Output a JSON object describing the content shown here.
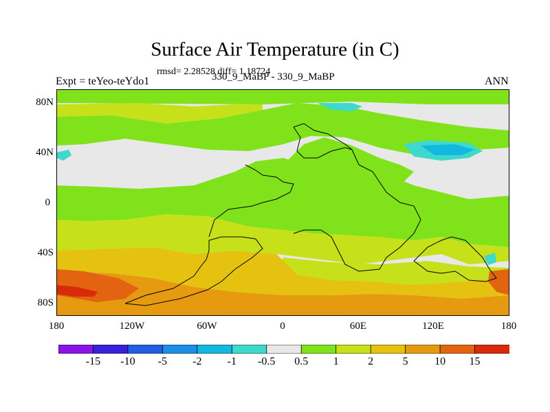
{
  "chart_data": {
    "type": "heatmap",
    "title": "Surface Air Temperature (in C)",
    "stats": "rmsd= 2.28528 diff= 1.18724",
    "left_label": "Expt = teYeo-teYdo1",
    "center_label": "330_9_MaBP - 330_9_MaBP",
    "right_label": "ANN",
    "x_ticks": [
      "180",
      "120W",
      "60W",
      "0",
      "60E",
      "120E",
      "180"
    ],
    "x_tick_lon": [
      -180,
      -120,
      -60,
      0,
      60,
      120,
      180
    ],
    "y_ticks": [
      "80N",
      "40N",
      "0",
      "40S",
      "80S"
    ],
    "y_tick_lat": [
      80,
      40,
      0,
      -40,
      -80
    ],
    "xlim": [
      -180,
      180
    ],
    "ylim": [
      -90,
      90
    ],
    "colorbar": {
      "levels": [
        "-15",
        "-10",
        "-5",
        "-2",
        "-1",
        "-0.5",
        "0.5",
        "1",
        "2",
        "5",
        "10",
        "15"
      ],
      "colors": [
        "#8a14e6",
        "#3a20d8",
        "#1f5fe0",
        "#1a8fe3",
        "#12b8e0",
        "#3fd9cc",
        "#e8e8e8",
        "#7fe21b",
        "#c6e01a",
        "#e6c210",
        "#e69a10",
        "#e26410",
        "#d92a0a"
      ]
    },
    "colors": {
      "neutral": "#e8e8e8",
      "green": "#7fe21b",
      "yellow_green": "#c6e01a",
      "yellow": "#e6c210",
      "orange": "#e69a10",
      "dark_orange": "#e26410",
      "red": "#d92a0a",
      "cyan": "#3fd9cc",
      "blue": "#12b8e0"
    }
  }
}
